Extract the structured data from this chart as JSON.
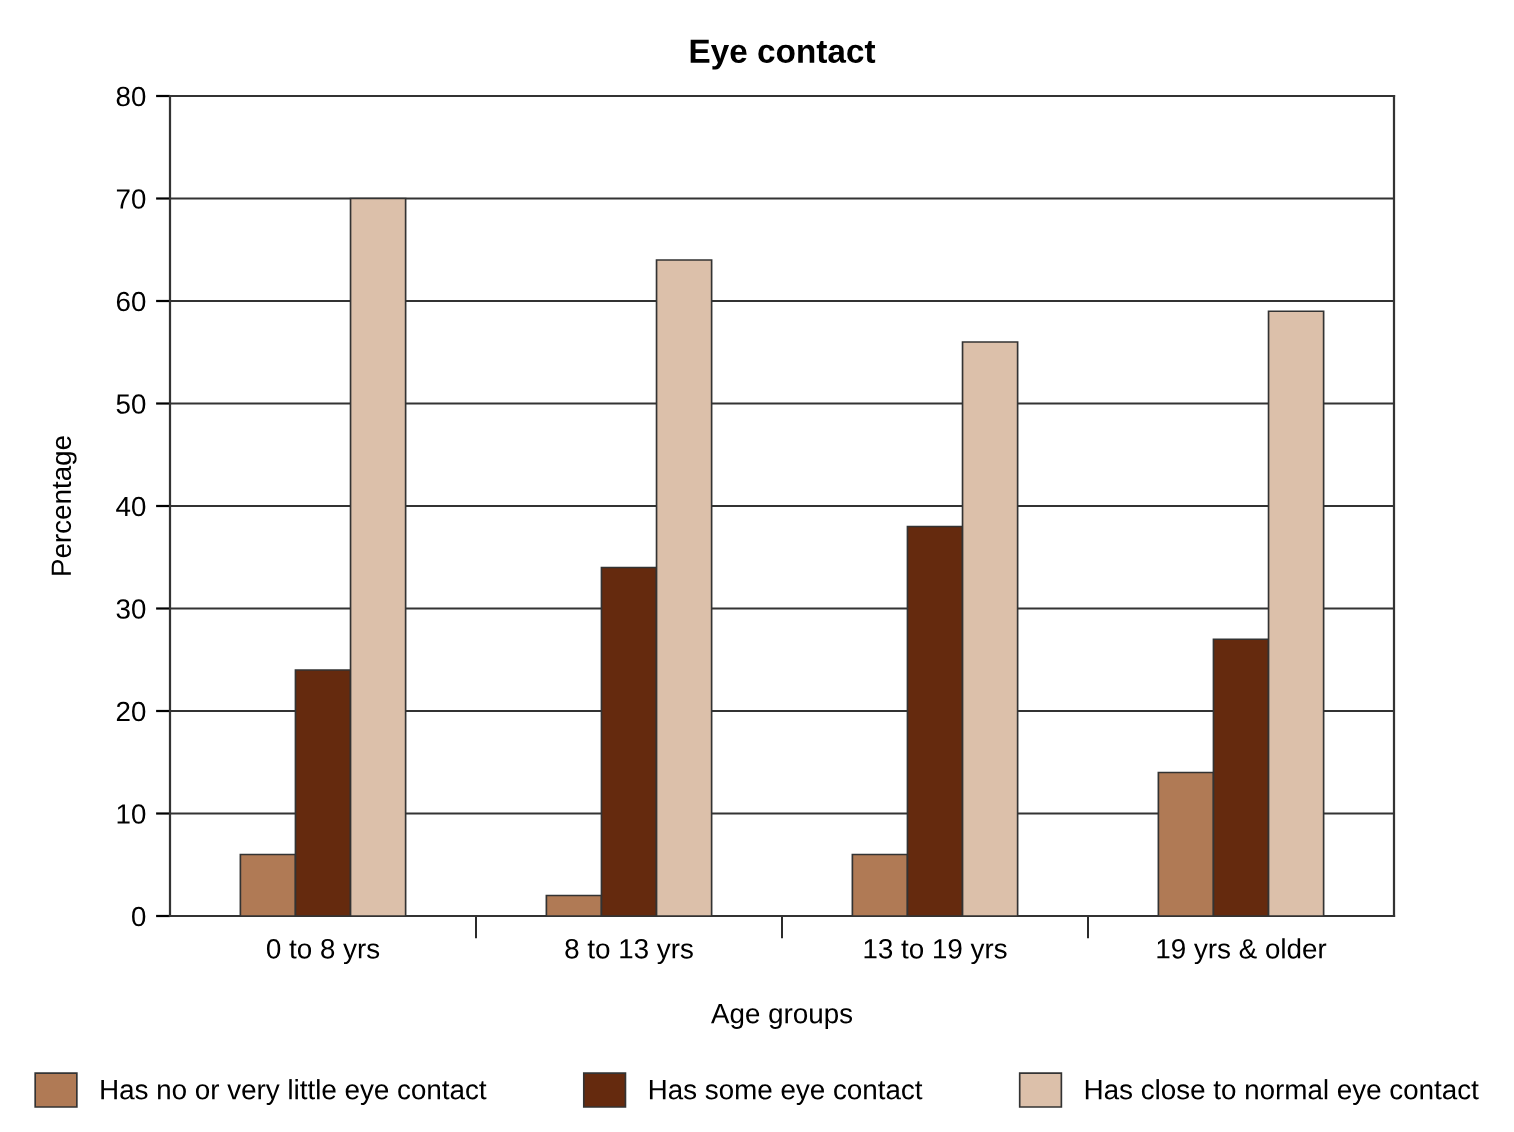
{
  "chart_data": {
    "type": "bar",
    "title": "Eye contact",
    "xlabel": "Age groups",
    "ylabel": "Percentage",
    "categories": [
      "0 to 8 yrs",
      "8 to 13 yrs",
      "13 to 19 yrs",
      "19 yrs & older"
    ],
    "series": [
      {
        "name": "Has no or very little eye contact",
        "color": "#b07a55",
        "values": [
          6,
          2,
          6,
          14
        ]
      },
      {
        "name": "Has some eye contact",
        "color": "#652a0e",
        "values": [
          24,
          34,
          38,
          27
        ]
      },
      {
        "name": "Has close to normal eye contact",
        "color": "#dcc0aa",
        "values": [
          70,
          64,
          56,
          59
        ]
      }
    ],
    "ylim": [
      0,
      80
    ],
    "yticks": [
      0,
      10,
      20,
      30,
      40,
      50,
      60,
      70,
      80
    ],
    "grid": "y",
    "legend": "bottom"
  }
}
